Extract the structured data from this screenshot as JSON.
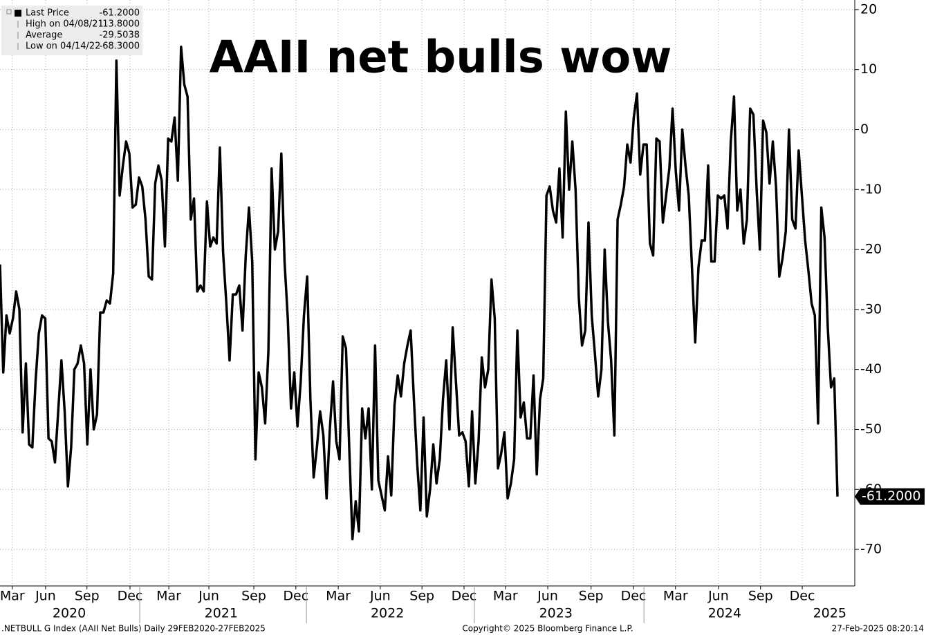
{
  "chart_data": {
    "type": "line",
    "title": "AAII net bulls wow",
    "legend": [
      {
        "name": "Last Price",
        "value": -61.2,
        "value_label": "-61.2000"
      },
      {
        "name": "High on 04/08/21",
        "value": 13.8,
        "value_label": "13.8000"
      },
      {
        "name": "Average",
        "value": -29.5038,
        "value_label": "-29.5038"
      },
      {
        "name": "Low on 04/14/22",
        "value": -68.3,
        "value_label": "-68.3000"
      }
    ],
    "color": "#000000",
    "values": [
      -22.5,
      -40.5,
      -31,
      -34,
      -31.5,
      -27,
      -30,
      -50.5,
      -39,
      -52.5,
      -53,
      -42,
      -34,
      -31,
      -31.5,
      -51.5,
      -52,
      -55.5,
      -47,
      -38.5,
      -47,
      -59.5,
      -53,
      -40,
      -39,
      -36,
      -39,
      -52.5,
      -40,
      -50,
      -47.5,
      -30.5,
      -30.5,
      -28.5,
      -29,
      -24,
      11.5,
      -11,
      -6,
      -2,
      -4,
      -13,
      -12.5,
      -8,
      -9.5,
      -15,
      -24.5,
      -25,
      -9,
      -6,
      -8.5,
      -19.5,
      -1.5,
      -2,
      2,
      -8.5,
      13.8,
      7.5,
      5.5,
      -15,
      -11.5,
      -27,
      -26,
      -27,
      -12,
      -19.5,
      -18,
      -19,
      -3,
      -20.5,
      -29,
      -38.5,
      -27.5,
      -27.5,
      -26,
      -33.5,
      -21,
      -13,
      -22,
      -55,
      -40.5,
      -43,
      -49,
      -37,
      -6.5,
      -20,
      -17,
      -4,
      -22,
      -31.5,
      -46.5,
      -40.5,
      -49.5,
      -42,
      -31,
      -24.5,
      -45,
      -58,
      -53,
      -47,
      -51,
      -61.5,
      -50,
      -42,
      -52,
      -55,
      -34.5,
      -36.5,
      -53,
      -68.3,
      -62,
      -67,
      -46.5,
      -51.5,
      -46.5,
      -60,
      -36,
      -58.5,
      -61,
      -63.5,
      -54.5,
      -61,
      -46,
      -41,
      -44.5,
      -39,
      -36,
      -33.5,
      -45,
      -55.5,
      -63.5,
      -48,
      -64.5,
      -60,
      -52.5,
      -59,
      -55,
      -45,
      -38.5,
      -50,
      -33,
      -42,
      -51,
      -50.5,
      -52,
      -59.5,
      -47,
      -59,
      -52,
      -38,
      -43,
      -40,
      -25,
      -31.5,
      -56.5,
      -54,
      -50.5,
      -61.5,
      -59,
      -55,
      -33.5,
      -48,
      -45.5,
      -51.5,
      -51.5,
      -41,
      -57.5,
      -45,
      -41.5,
      -11,
      -9.5,
      -13.5,
      -15.5,
      -6.5,
      -18,
      3,
      -10,
      -2,
      -10,
      -28,
      -36,
      -33.5,
      -15.5,
      -31,
      -37.5,
      -44.5,
      -40,
      -20,
      -32,
      -38.5,
      -51,
      -15,
      -12.5,
      -9.5,
      -2.5,
      -5.5,
      2,
      6,
      -7.5,
      -2.5,
      -2.5,
      -19,
      -21,
      -1.5,
      -2,
      -15.5,
      -11,
      -6.5,
      3.5,
      -7,
      -13.5,
      0,
      -6,
      -11,
      -23,
      -35.5,
      -23,
      -18.5,
      -18.5,
      -6,
      -22,
      -22,
      -11,
      -11.5,
      -11,
      -16.5,
      -2,
      5.5,
      -13.5,
      -10,
      -19,
      -15,
      3.5,
      2.5,
      -10,
      -20,
      1.5,
      -0.5,
      -9,
      -2,
      -9.5,
      -24.5,
      -21.5,
      -17,
      0,
      -15,
      -16.5,
      -3.5,
      -11,
      -18.5,
      -23.5,
      -29,
      -31,
      -49,
      -13,
      -18,
      -33,
      -43,
      -41.5,
      -61.2
    ],
    "xlim": [
      0,
      259
    ],
    "xticks": [
      {
        "value": 3.8,
        "label": "Mar"
      },
      {
        "value": 14.1,
        "label": "Jun"
      },
      {
        "value": 26.9,
        "label": "Sep"
      },
      {
        "value": 40.2,
        "label": "Dec"
      },
      {
        "value": 52.2,
        "label": "Mar"
      },
      {
        "value": 64.6,
        "label": "Jun"
      },
      {
        "value": 78.5,
        "label": "Sep"
      },
      {
        "value": 91.5,
        "label": "Dec"
      },
      {
        "value": 104.6,
        "label": "Mar"
      },
      {
        "value": 117.6,
        "label": "Jun"
      },
      {
        "value": 130.5,
        "label": "Sep"
      },
      {
        "value": 143.5,
        "label": "Dec"
      },
      {
        "value": 156.3,
        "label": "Mar"
      },
      {
        "value": 169.4,
        "label": "Jun"
      },
      {
        "value": 182.8,
        "label": "Sep"
      },
      {
        "value": 195.9,
        "label": "Dec"
      },
      {
        "value": 208.9,
        "label": "Mar"
      },
      {
        "value": 222.2,
        "label": "Jun"
      },
      {
        "value": 235.2,
        "label": "Sep"
      },
      {
        "value": 248.1,
        "label": "Dec"
      }
    ],
    "year_labels": [
      {
        "value": 21.4,
        "label": "2020"
      },
      {
        "value": 68.4,
        "label": "2021"
      },
      {
        "value": 119.8,
        "label": "2022"
      },
      {
        "value": 171.9,
        "label": "2023"
      },
      {
        "value": 224.1,
        "label": "2024"
      },
      {
        "value": 256.6,
        "label": "2025"
      }
    ],
    "ylim": [
      -76.1,
      21.6
    ],
    "yticks": [
      20,
      10,
      0,
      -10,
      -20,
      -30,
      -40,
      -50,
      -60,
      -70
    ],
    "grid": true,
    "footer": {
      "source": ".NETBULL G Index (AAII Net Bulls)  Daily 29FEB2020-27FEB2025",
      "copyright": "Copyright© 2025 Bloomberg Finance L.P.",
      "timestamp": "27-Feb-2025 08:20:14"
    }
  }
}
